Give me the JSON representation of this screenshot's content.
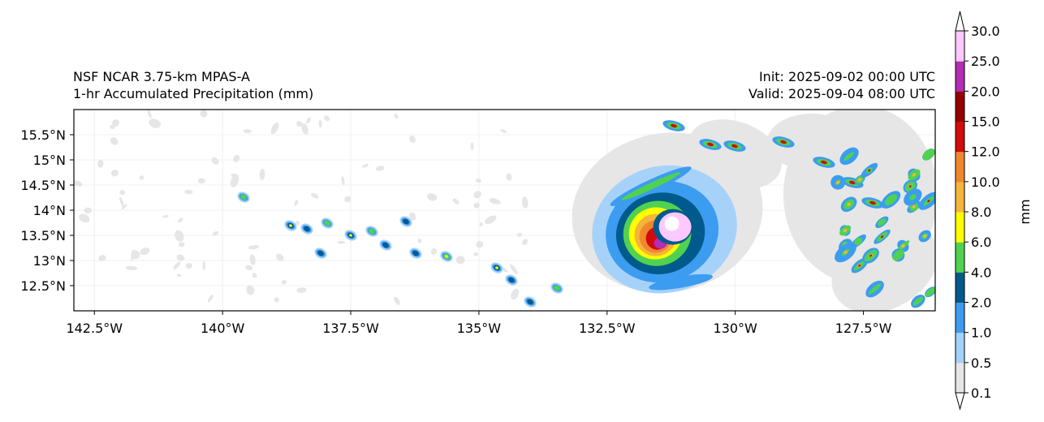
{
  "title": {
    "model": "NSF NCAR 3.75-km MPAS-A",
    "field": "1-hr Accumulated Precipitation (mm)",
    "init": "Init: 2025-09-02 00:00 UTC",
    "valid": "Valid: 2025-09-04 08:00 UTC"
  },
  "map": {
    "lon_range": [
      -142.9,
      -126.1
    ],
    "lat_range": [
      12.0,
      16.0
    ],
    "lon_ticks": [
      {
        "value": -142.5,
        "label": "142.5°W"
      },
      {
        "value": -140.0,
        "label": "140°W"
      },
      {
        "value": -137.5,
        "label": "137.5°W"
      },
      {
        "value": -135.0,
        "label": "135°W"
      },
      {
        "value": -132.5,
        "label": "132.5°W"
      },
      {
        "value": -130.0,
        "label": "130°W"
      },
      {
        "value": -127.5,
        "label": "127.5°W"
      }
    ],
    "lat_ticks": [
      {
        "value": 12.5,
        "label": "12.5°N"
      },
      {
        "value": 13.0,
        "label": "13°N"
      },
      {
        "value": 13.5,
        "label": "13.5°N"
      },
      {
        "value": 14.0,
        "label": "14°N"
      },
      {
        "value": 14.5,
        "label": "14.5°N"
      },
      {
        "value": 15.0,
        "label": "15°N"
      },
      {
        "value": 15.5,
        "label": "15.5°N"
      }
    ],
    "storm_center": {
      "lon": -131.3,
      "lat": 13.7
    }
  },
  "colorbar": {
    "unit": "mm",
    "levels": [
      "0.1",
      "0.5",
      "1.0",
      "2.0",
      "4.0",
      "6.0",
      "8.0",
      "10.0",
      "12.0",
      "15.0",
      "20.0",
      "25.0",
      "30.0"
    ],
    "colors": [
      "#e6e6e6",
      "#a6d2fa",
      "#3c9cf0",
      "#005a8c",
      "#50d250",
      "#ffff00",
      "#f5b43c",
      "#f0872d",
      "#d20a0a",
      "#960000",
      "#b42db4",
      "#ffc8ff"
    ]
  },
  "chart_data": {
    "type": "map",
    "title": "NSF NCAR 3.75-km MPAS-A — 1-hr Accumulated Precipitation (mm)",
    "variable": "1-hr accumulated precipitation",
    "units": "mm",
    "extent": {
      "lon": [
        -142.9,
        -126.1
      ],
      "lat": [
        12.0,
        16.0
      ]
    },
    "features": [
      {
        "name": "tropical cyclone core",
        "lon": -131.3,
        "lat": 13.7,
        "max_mm": 30.0
      },
      {
        "name": "western trailing cells",
        "lon_range": [
          -139.5,
          -133.0
        ],
        "lat_range": [
          12.0,
          14.5
        ],
        "max_mm": 8.0
      },
      {
        "name": "eastern convective band",
        "lon_range": [
          -129.0,
          -126.1
        ],
        "lat_range": [
          12.0,
          15.0
        ],
        "max_mm": 20.0
      }
    ]
  }
}
